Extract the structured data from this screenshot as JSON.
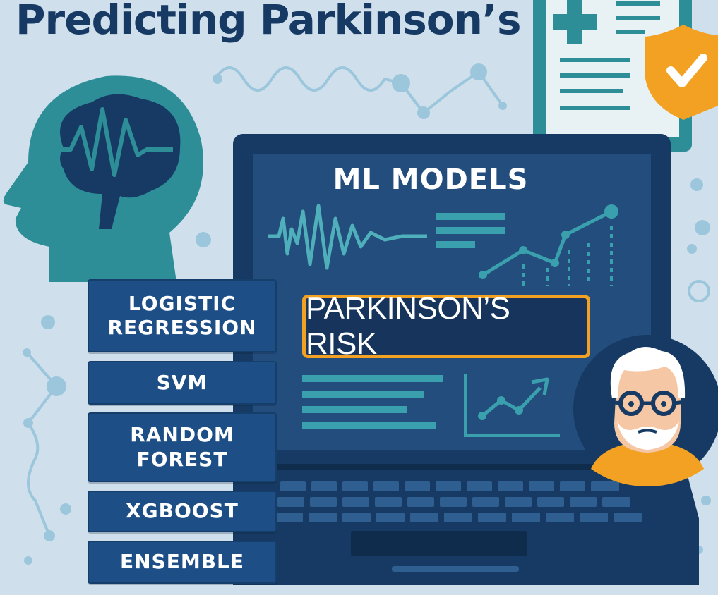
{
  "title": "Predicting Parkinson’s",
  "screen": {
    "heading": "ML MODELS",
    "result_label": "PARKINSON’S RISK"
  },
  "models": [
    {
      "label": "LOGISTIC REGRESSION"
    },
    {
      "label": "SVM"
    },
    {
      "label": "RANDOM FOREST"
    },
    {
      "label": "XGBOOST"
    },
    {
      "label": "ENSEMBLE"
    }
  ],
  "icons": [
    "brain-head-icon",
    "brainwave-icon",
    "medical-report-icon",
    "shield-check-icon",
    "laptop-icon",
    "elderly-patient-avatar",
    "line-chart-icon",
    "waveform-icon"
  ],
  "colors": {
    "background": "#cfe0ec",
    "navy": "#163a63",
    "teal": "#2e8a94",
    "accent_orange": "#f2a122",
    "button_blue": "#1d4f86"
  }
}
